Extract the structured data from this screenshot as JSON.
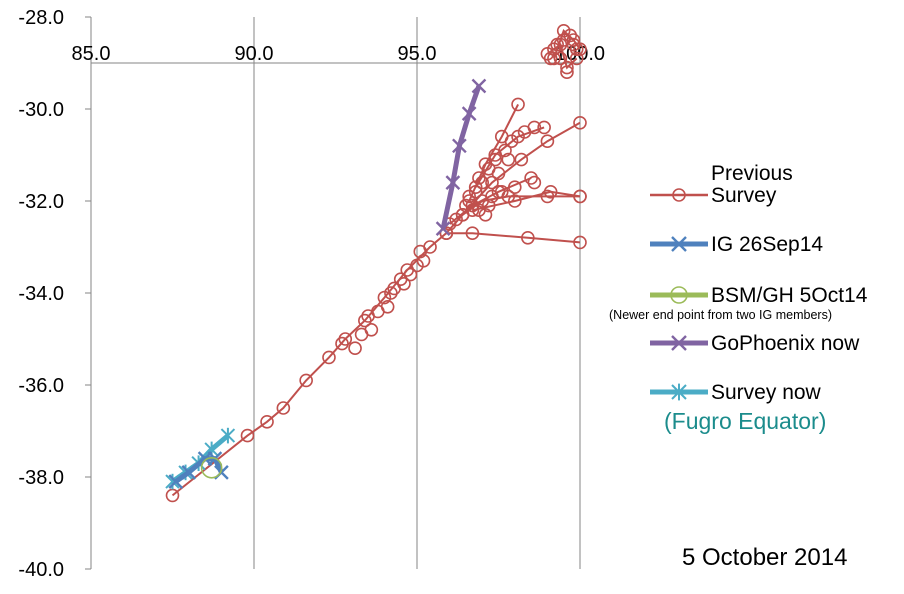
{
  "chart_data": {
    "type": "line",
    "title": "",
    "xlabel": "",
    "ylabel": "",
    "xlim": [
      85,
      100
    ],
    "ylim": [
      -40,
      -28
    ],
    "x_ticks": [
      "85.0",
      "90.0",
      "95.0",
      "100.0"
    ],
    "y_ticks": [
      "-28.0",
      "-30.0",
      "-32.0",
      "-34.0",
      "-36.0",
      "-38.0",
      "-40.0"
    ],
    "x_axis_position": "top (crosses at y = -29.0)",
    "grid": "vertical gridlines only",
    "legend_position": "right",
    "annotation": "5 October 2014",
    "series": [
      {
        "name_lines": [
          "Previous",
          "Survey"
        ],
        "color": "#c0504d",
        "marker": "circle",
        "line_width": "thin",
        "segments": [
          [
            [
              87.5,
              -38.4
            ],
            [
              89.8,
              -37.1
            ],
            [
              90.4,
              -36.8
            ],
            [
              90.9,
              -36.5
            ],
            [
              91.6,
              -35.9
            ],
            [
              92.3,
              -35.4
            ],
            [
              92.8,
              -35.0
            ],
            [
              93.4,
              -34.6
            ],
            [
              94.0,
              -34.1
            ],
            [
              94.7,
              -33.5
            ],
            [
              95.4,
              -33.0
            ],
            [
              95.9,
              -32.7
            ],
            [
              96.4,
              -32.3
            ],
            [
              97.0,
              -32.0
            ],
            [
              97.8,
              -31.9
            ],
            [
              99.0,
              -31.9
            ],
            [
              100.0,
              -31.9
            ]
          ],
          [
            [
              96.4,
              -32.3
            ],
            [
              97.3,
              -31.6
            ],
            [
              98.2,
              -31.1
            ],
            [
              99.0,
              -30.7
            ],
            [
              100.0,
              -30.3
            ]
          ],
          [
            [
              95.9,
              -32.7
            ],
            [
              96.7,
              -32.7
            ],
            [
              98.4,
              -32.8
            ],
            [
              100.0,
              -32.9
            ]
          ],
          [
            [
              96.0,
              -32.5
            ],
            [
              96.7,
              -32.1
            ],
            [
              97.5,
              -31.8
            ],
            [
              98.5,
              -31.5
            ]
          ],
          [
            [
              96.6,
              -32.0
            ],
            [
              97.1,
              -31.2
            ],
            [
              97.6,
              -30.6
            ],
            [
              98.1,
              -29.9
            ]
          ],
          [
            [
              96.7,
              -32.2
            ],
            [
              98.0,
              -32.0
            ],
            [
              99.1,
              -31.8
            ],
            [
              100.0,
              -31.9
            ]
          ],
          [
            [
              96.8,
              -31.7
            ],
            [
              97.4,
              -31.0
            ],
            [
              98.1,
              -30.6
            ],
            [
              98.9,
              -30.4
            ]
          ],
          [
            [
              99.2,
              -28.9
            ],
            [
              99.5,
              -28.3
            ],
            [
              99.8,
              -28.5
            ],
            [
              100.0,
              -28.7
            ]
          ],
          [
            [
              99.0,
              -28.8
            ],
            [
              99.4,
              -28.6
            ],
            [
              99.6,
              -29.1
            ],
            [
              99.9,
              -28.9
            ]
          ]
        ],
        "points": [
          [
            92.7,
            -35.1
          ],
          [
            93.1,
            -35.2
          ],
          [
            93.3,
            -34.9
          ],
          [
            93.6,
            -34.8
          ],
          [
            93.8,
            -34.4
          ],
          [
            94.1,
            -34.3
          ],
          [
            94.3,
            -33.9
          ],
          [
            94.5,
            -33.7
          ],
          [
            94.8,
            -33.6
          ],
          [
            95.0,
            -33.4
          ],
          [
            95.2,
            -33.3
          ],
          [
            93.5,
            -34.5
          ],
          [
            94.2,
            -34.0
          ],
          [
            94.6,
            -33.8
          ],
          [
            95.1,
            -33.1
          ],
          [
            96.2,
            -32.4
          ],
          [
            96.5,
            -32.1
          ],
          [
            96.8,
            -31.8
          ],
          [
            97.0,
            -31.6
          ],
          [
            97.2,
            -31.3
          ],
          [
            97.4,
            -31.1
          ],
          [
            97.7,
            -30.9
          ],
          [
            97.9,
            -30.7
          ],
          [
            98.3,
            -30.5
          ],
          [
            98.6,
            -30.4
          ],
          [
            96.9,
            -32.2
          ],
          [
            97.2,
            -32.1
          ],
          [
            97.6,
            -31.8
          ],
          [
            98.0,
            -31.7
          ],
          [
            98.6,
            -31.6
          ],
          [
            96.6,
            -31.9
          ],
          [
            96.9,
            -31.5
          ],
          [
            97.3,
            -31.9
          ],
          [
            97.5,
            -31.4
          ],
          [
            97.1,
            -32.3
          ],
          [
            97.8,
            -31.1
          ],
          [
            99.1,
            -28.9
          ],
          [
            99.3,
            -28.6
          ],
          [
            99.5,
            -28.5
          ],
          [
            99.7,
            -28.4
          ],
          [
            99.4,
            -28.9
          ],
          [
            99.6,
            -29.2
          ],
          [
            99.9,
            -28.7
          ],
          [
            99.2,
            -28.7
          ],
          [
            99.8,
            -28.6
          ]
        ]
      },
      {
        "name": "IG 26Sep14",
        "color": "#4f81bd",
        "marker": "x",
        "line_width": "thick",
        "points": [
          [
            87.6,
            -38.1
          ],
          [
            88.0,
            -37.9
          ],
          [
            88.5,
            -37.6
          ],
          [
            88.8,
            -37.6
          ],
          [
            89.0,
            -37.9
          ]
        ]
      },
      {
        "name": "BSM/GH 5Oct14",
        "note": "(Newer end point from two IG members)",
        "color": "#9bbb59",
        "marker": "circle",
        "line_width": "thick",
        "points": [
          [
            88.7,
            -37.8
          ]
        ]
      },
      {
        "name": "GoPhoenix now",
        "color": "#8064a2",
        "marker": "x",
        "line_width": "thick",
        "points": [
          [
            95.8,
            -32.6
          ],
          [
            96.1,
            -31.6
          ],
          [
            96.3,
            -30.8
          ],
          [
            96.6,
            -30.1
          ],
          [
            96.9,
            -29.5
          ]
        ]
      },
      {
        "name_lines": [
          "Survey now",
          "(Fugro Equator)"
        ],
        "color": "#4bacc6",
        "marker": "asterisk",
        "line_width": "thick",
        "points": [
          [
            87.5,
            -38.1
          ],
          [
            87.9,
            -37.9
          ],
          [
            88.3,
            -37.7
          ],
          [
            88.7,
            -37.4
          ],
          [
            89.2,
            -37.1
          ]
        ]
      }
    ]
  }
}
